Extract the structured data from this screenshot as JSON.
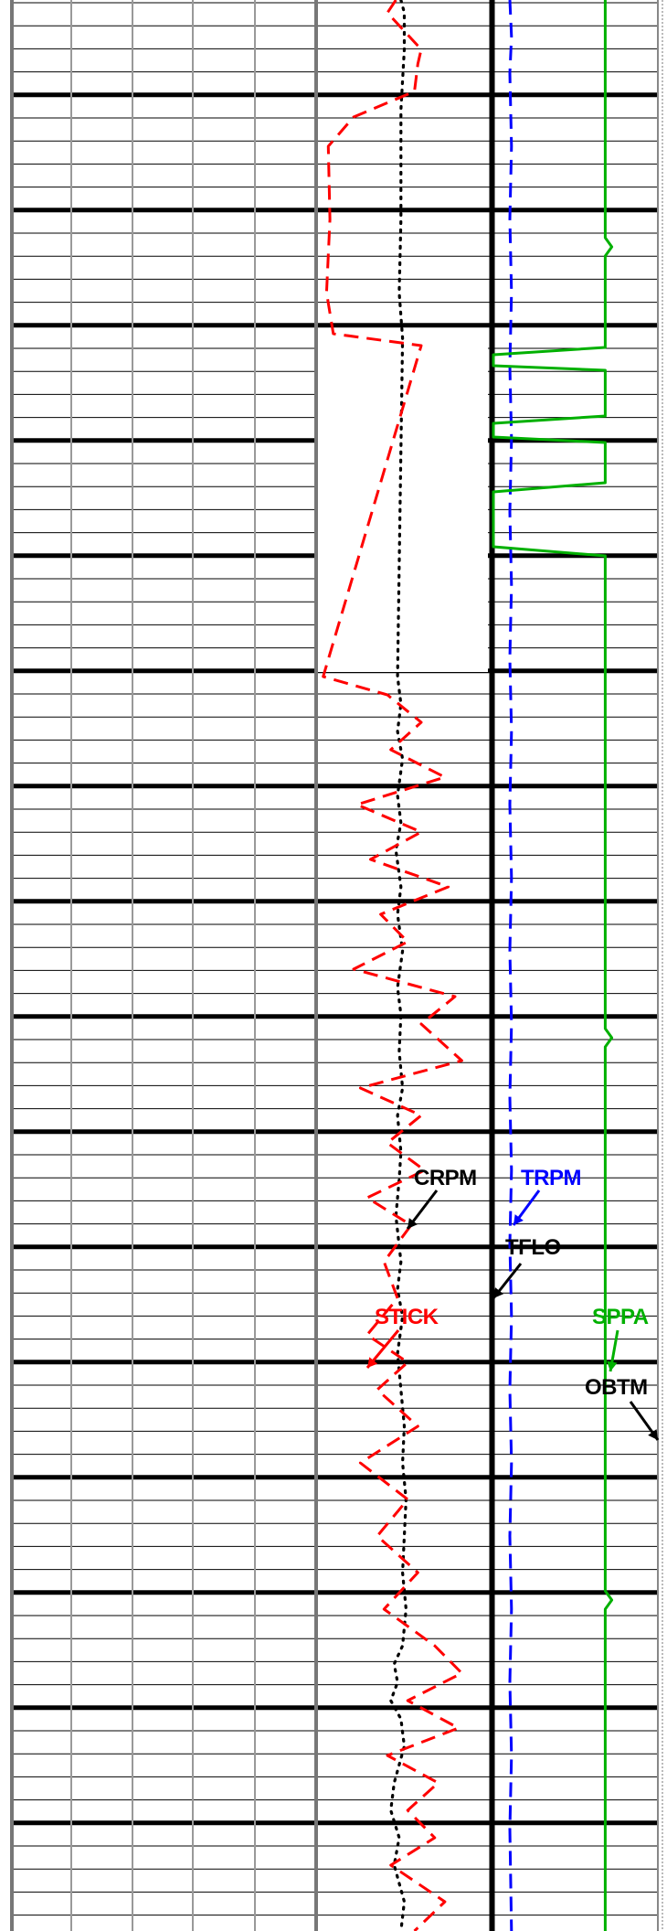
{
  "chart_data": {
    "type": "line",
    "orientation": "vertical-depth-log",
    "grid": true,
    "depth_axis_printed": false,
    "labels": [
      {
        "id": "crpm",
        "text": "CRPM",
        "color": "#000000"
      },
      {
        "id": "trpm",
        "text": "TRPM",
        "color": "#0000ff"
      },
      {
        "id": "tflo",
        "text": "TFLO",
        "color": "#000000"
      },
      {
        "id": "stick",
        "text": "STICK",
        "color": "#ff0000"
      },
      {
        "id": "sppa",
        "text": "SPPA",
        "color": "#00b000"
      },
      {
        "id": "obtm",
        "text": "OBTM",
        "color": "#000000"
      }
    ],
    "series": [
      {
        "id": "crpm",
        "name": "CRPM",
        "color": "#000000",
        "style": "dotted",
        "track": "center",
        "scale": [
          0,
          100
        ],
        "gaps": [
          [
            378,
            735
          ]
        ],
        "points": [
          [
            0,
            48
          ],
          [
            14,
            50
          ],
          [
            54,
            50
          ],
          [
            120,
            48
          ],
          [
            240,
            48
          ],
          [
            320,
            47
          ],
          [
            370,
            49
          ],
          [
            740,
            46
          ],
          [
            770,
            48
          ],
          [
            800,
            46
          ],
          [
            830,
            49
          ],
          [
            870,
            46
          ],
          [
            900,
            48
          ],
          [
            930,
            45
          ],
          [
            970,
            48
          ],
          [
            1000,
            46
          ],
          [
            1040,
            49
          ],
          [
            1080,
            46
          ],
          [
            1110,
            48
          ],
          [
            1150,
            47
          ],
          [
            1190,
            49
          ],
          [
            1220,
            46
          ],
          [
            1260,
            48
          ],
          [
            1290,
            47
          ],
          [
            1330,
            45
          ],
          [
            1380,
            48
          ],
          [
            1410,
            46
          ],
          [
            1440,
            49
          ],
          [
            1480,
            46
          ],
          [
            1520,
            48
          ],
          [
            1560,
            50
          ],
          [
            1600,
            49
          ],
          [
            1640,
            51
          ],
          [
            1680,
            50
          ],
          [
            1720,
            49
          ],
          [
            1760,
            51
          ],
          [
            1800,
            49
          ],
          [
            1820,
            44
          ],
          [
            1840,
            46
          ],
          [
            1860,
            42
          ],
          [
            1880,
            48
          ],
          [
            1910,
            50
          ],
          [
            1950,
            44
          ],
          [
            1980,
            42
          ],
          [
            2010,
            47
          ],
          [
            2040,
            44
          ],
          [
            2080,
            50
          ],
          [
            2112,
            48
          ]
        ]
      },
      {
        "id": "stick",
        "name": "STICK",
        "color": "#ff0000",
        "style": "dashed",
        "track": "center",
        "scale": [
          0,
          100
        ],
        "gaps": [
          [
            378,
            735
          ]
        ],
        "points": [
          [
            0,
            45
          ],
          [
            14,
            40
          ],
          [
            30,
            48
          ],
          [
            54,
            60
          ],
          [
            70,
            58
          ],
          [
            100,
            56
          ],
          [
            128,
            20
          ],
          [
            160,
            5
          ],
          [
            240,
            6
          ],
          [
            320,
            4
          ],
          [
            365,
            8
          ],
          [
            378,
            60
          ],
          [
            740,
            2
          ],
          [
            760,
            40
          ],
          [
            790,
            60
          ],
          [
            820,
            42
          ],
          [
            850,
            74
          ],
          [
            880,
            22
          ],
          [
            910,
            60
          ],
          [
            940,
            30
          ],
          [
            970,
            76
          ],
          [
            1000,
            36
          ],
          [
            1030,
            52
          ],
          [
            1060,
            20
          ],
          [
            1090,
            80
          ],
          [
            1120,
            60
          ],
          [
            1160,
            84
          ],
          [
            1190,
            24
          ],
          [
            1220,
            60
          ],
          [
            1250,
            40
          ],
          [
            1280,
            62
          ],
          [
            1310,
            28
          ],
          [
            1340,
            54
          ],
          [
            1380,
            38
          ],
          [
            1420,
            46
          ],
          [
            1460,
            28
          ],
          [
            1490,
            52
          ],
          [
            1520,
            34
          ],
          [
            1560,
            58
          ],
          [
            1600,
            24
          ],
          [
            1640,
            52
          ],
          [
            1680,
            34
          ],
          [
            1720,
            58
          ],
          [
            1760,
            38
          ],
          [
            1800,
            68
          ],
          [
            1830,
            84
          ],
          [
            1860,
            52
          ],
          [
            1890,
            82
          ],
          [
            1920,
            40
          ],
          [
            1950,
            70
          ],
          [
            1980,
            52
          ],
          [
            2010,
            68
          ],
          [
            2040,
            42
          ],
          [
            2080,
            74
          ],
          [
            2112,
            56
          ]
        ]
      },
      {
        "id": "tflo",
        "name": "TFLO",
        "color": "#000000",
        "style": "solid",
        "track": "right",
        "scale": [
          0,
          100
        ],
        "gaps": [],
        "points": [
          [
            0,
            0
          ],
          [
            2112,
            0
          ]
        ]
      },
      {
        "id": "trpm",
        "name": "TRPM",
        "color": "#0000ff",
        "style": "dashed",
        "track": "right",
        "scale": [
          0,
          100
        ],
        "gaps": [],
        "points": [
          [
            0,
            10
          ],
          [
            40,
            11
          ],
          [
            80,
            10
          ],
          [
            160,
            11
          ],
          [
            240,
            10
          ],
          [
            320,
            11
          ],
          [
            400,
            10
          ],
          [
            480,
            11
          ],
          [
            560,
            10
          ],
          [
            640,
            11
          ],
          [
            720,
            10
          ],
          [
            800,
            11
          ],
          [
            880,
            10
          ],
          [
            960,
            11
          ],
          [
            1040,
            10
          ],
          [
            1120,
            11
          ],
          [
            1200,
            10
          ],
          [
            1280,
            11
          ],
          [
            1360,
            10
          ],
          [
            1440,
            11
          ],
          [
            1520,
            10
          ],
          [
            1600,
            11
          ],
          [
            1680,
            10
          ],
          [
            1760,
            11
          ],
          [
            1840,
            10
          ],
          [
            1920,
            11
          ],
          [
            2000,
            10
          ],
          [
            2112,
            11
          ]
        ]
      },
      {
        "id": "sppa",
        "name": "SPPA",
        "color": "#00b000",
        "style": "solid",
        "track": "right",
        "scale": [
          0,
          100
        ],
        "gaps": [],
        "points": [
          [
            0,
            68
          ],
          [
            260,
            68
          ],
          [
            270,
            72
          ],
          [
            280,
            68
          ],
          [
            380,
            68
          ],
          [
            388,
            0
          ],
          [
            400,
            0
          ],
          [
            405,
            68
          ],
          [
            455,
            68
          ],
          [
            463,
            0
          ],
          [
            478,
            0
          ],
          [
            484,
            68
          ],
          [
            528,
            68
          ],
          [
            538,
            0
          ],
          [
            598,
            0
          ],
          [
            608,
            68
          ],
          [
            690,
            68
          ],
          [
            1125,
            68
          ],
          [
            1135,
            72
          ],
          [
            1145,
            68
          ],
          [
            1740,
            68
          ],
          [
            1750,
            72
          ],
          [
            1760,
            68
          ],
          [
            2112,
            68
          ]
        ]
      }
    ]
  }
}
